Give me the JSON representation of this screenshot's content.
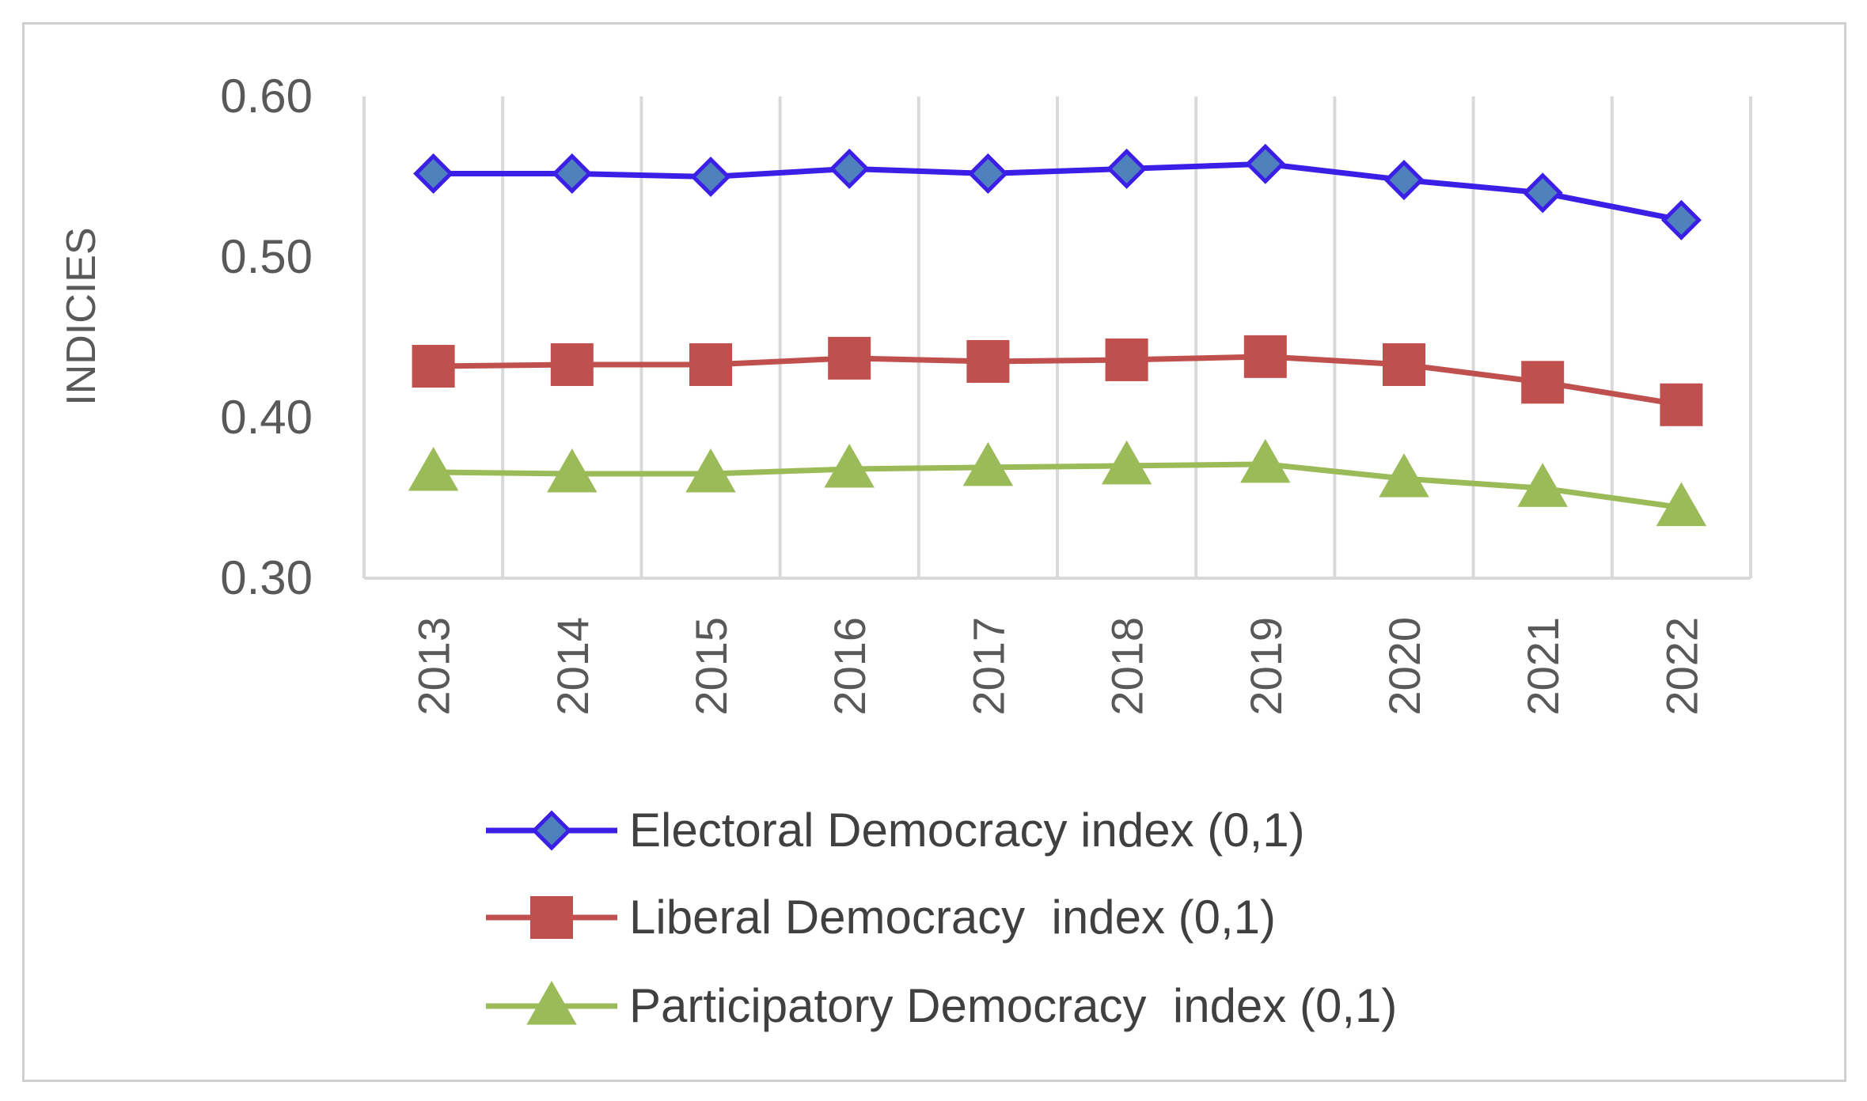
{
  "chart_data": {
    "type": "line",
    "title": "",
    "xlabel": "",
    "ylabel": "INDICIES",
    "categories": [
      "2013",
      "2014",
      "2015",
      "2016",
      "2017",
      "2018",
      "2019",
      "2020",
      "2021",
      "2022"
    ],
    "ylim": [
      0.3,
      0.6
    ],
    "yticks": [
      "0.30",
      "0.40",
      "0.50",
      "0.60"
    ],
    "grid": "vertical",
    "legend_position": "bottom",
    "series": [
      {
        "name": "Electoral Democracy index (0,1)",
        "color": "#3b1fe6",
        "marker_fill": "#4f81bd",
        "marker": "diamond",
        "values": [
          0.552,
          0.552,
          0.55,
          0.555,
          0.552,
          0.555,
          0.558,
          0.548,
          0.54,
          0.523
        ]
      },
      {
        "name": "Liberal Democracy  index (0,1)",
        "color": "#c0504d",
        "marker_fill": "#c0504d",
        "marker": "square",
        "values": [
          0.432,
          0.433,
          0.433,
          0.437,
          0.435,
          0.436,
          0.438,
          0.433,
          0.422,
          0.408
        ]
      },
      {
        "name": "Participatory Democracy  index (0,1)",
        "color": "#9bbb59",
        "marker_fill": "#9bbb59",
        "marker": "triangle",
        "values": [
          0.366,
          0.365,
          0.365,
          0.368,
          0.369,
          0.37,
          0.371,
          0.362,
          0.356,
          0.344
        ]
      }
    ]
  }
}
